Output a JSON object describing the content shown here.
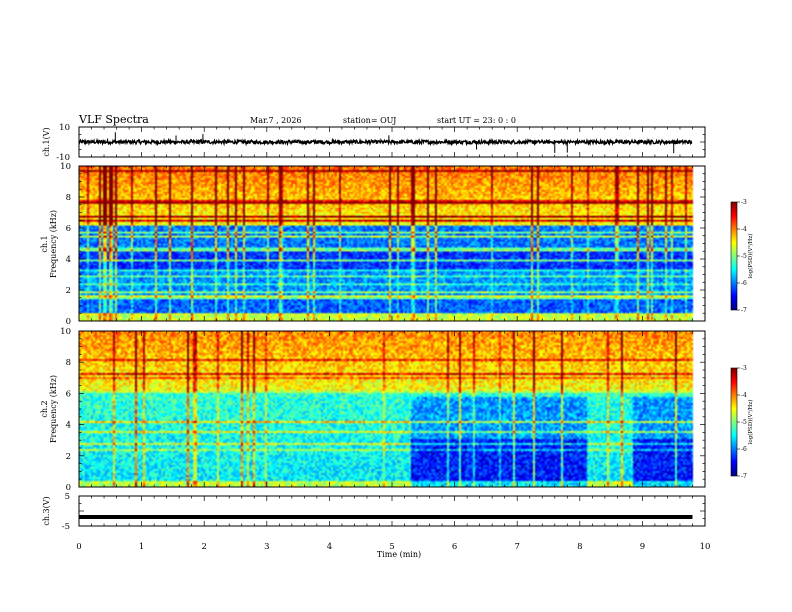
{
  "chart_data": {
    "type": "spectrogram",
    "title": "VLF Spectra",
    "header": {
      "date": "Mar.7  , 2026",
      "station": "station= OUJ",
      "start": "start  UT  =  23: 0  : 0"
    },
    "xaxis": {
      "label": "Time  (min)",
      "range": [
        0,
        10
      ],
      "ticks": [
        0,
        1,
        2,
        3,
        4,
        5,
        6,
        7,
        8,
        9,
        10
      ],
      "tick_labels": [
        "0",
        "1",
        "2",
        "3",
        "4",
        "5",
        "6",
        "7",
        "8",
        "9",
        "10"
      ]
    },
    "waveform_ch1": {
      "ylabel": "ch.1(V)",
      "yrange": [
        -10,
        10
      ],
      "tick_labels": [
        "10",
        "-10"
      ],
      "baseline": 0,
      "data_end_min": 9.8,
      "spikes_min": [
        0.1,
        0.58,
        1.55,
        1.98,
        3.3,
        4.95,
        6.35,
        7.6,
        7.8,
        9.5
      ]
    },
    "spectrogram_ch1": {
      "channel_label": "ch.1",
      "ylabel": "Frequency  (kHz)",
      "yrange_khz": [
        0,
        10
      ],
      "tick_labels": [
        "0",
        "2",
        "4",
        "6",
        "8",
        "10"
      ],
      "data_end_min": 9.8,
      "colorbar": {
        "label": "log(PSD)(V²/Hz)",
        "range": [
          -7,
          -3
        ],
        "tick_labels": [
          "-3",
          "-4",
          "-5",
          "-6",
          "-7"
        ]
      }
    },
    "spectrogram_ch2": {
      "channel_label": "ch.2",
      "ylabel": "Frequency  (kHz)",
      "yrange_khz": [
        0,
        10
      ],
      "tick_labels": [
        "0",
        "2",
        "4",
        "6",
        "8",
        "10"
      ],
      "data_end_min": 9.8,
      "quiet_intervals_min": [
        [
          5.3,
          8.1
        ],
        [
          8.85,
          9.8
        ]
      ],
      "colorbar": {
        "label": "log(PSD)(V²/Hz)",
        "range": [
          -7,
          -3
        ],
        "tick_labels": [
          "-3",
          "-4",
          "-5",
          "-6",
          "-7"
        ]
      }
    },
    "waveform_ch3": {
      "ylabel": "ch.3(V)",
      "yrange": [
        -5,
        5
      ],
      "tick_labels": [
        "5",
        "-5"
      ],
      "baseline": -2,
      "data_end_min": 9.8
    }
  }
}
